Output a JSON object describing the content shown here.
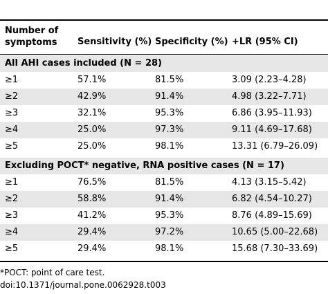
{
  "table": {
    "headers": {
      "c0_line1": "Number of",
      "c0_line2": "symptoms",
      "c1": "Sensitivity (%)",
      "c2": "Specificity (%)",
      "c3": "+LR (95% CI)"
    },
    "sections": [
      {
        "title": "All AHI cases included (N = 28)",
        "rows": [
          [
            "≥1",
            "57.1%",
            "81.5%",
            "3.09 (2.23–4.28)"
          ],
          [
            "≥2",
            "42.9%",
            "91.4%",
            "4.98 (3.22–7.71)"
          ],
          [
            "≥3",
            "32.1%",
            "95.3%",
            "6.86 (3.95–11.93)"
          ],
          [
            "≥4",
            "25.0%",
            "97.3%",
            "9.11 (4.69–17.68)"
          ],
          [
            "≥5",
            "25.0%",
            "98.1%",
            "13.31 (6.79–26.09)"
          ]
        ]
      },
      {
        "title": "Excluding POCT* negative, RNA positive cases (N = 17)",
        "rows": [
          [
            "≥1",
            "76.5%",
            "81.5%",
            "4.13 (3.15–5.42)"
          ],
          [
            "≥2",
            "58.8%",
            "91.4%",
            "6.82 (4.54–10.27)"
          ],
          [
            "≥3",
            "41.2%",
            "95.3%",
            "8.76 (4.89–15.69)"
          ],
          [
            "≥4",
            "29.4%",
            "97.2%",
            "10.65 (5.00–22.68)"
          ],
          [
            "≥5",
            "29.4%",
            "98.1%",
            "15.68 (7.30–33.69)"
          ]
        ]
      }
    ]
  },
  "footnotes": {
    "poct": "*POCT: point of care test.",
    "doi": "doi:10.1371/journal.pone.0062928.t003"
  }
}
